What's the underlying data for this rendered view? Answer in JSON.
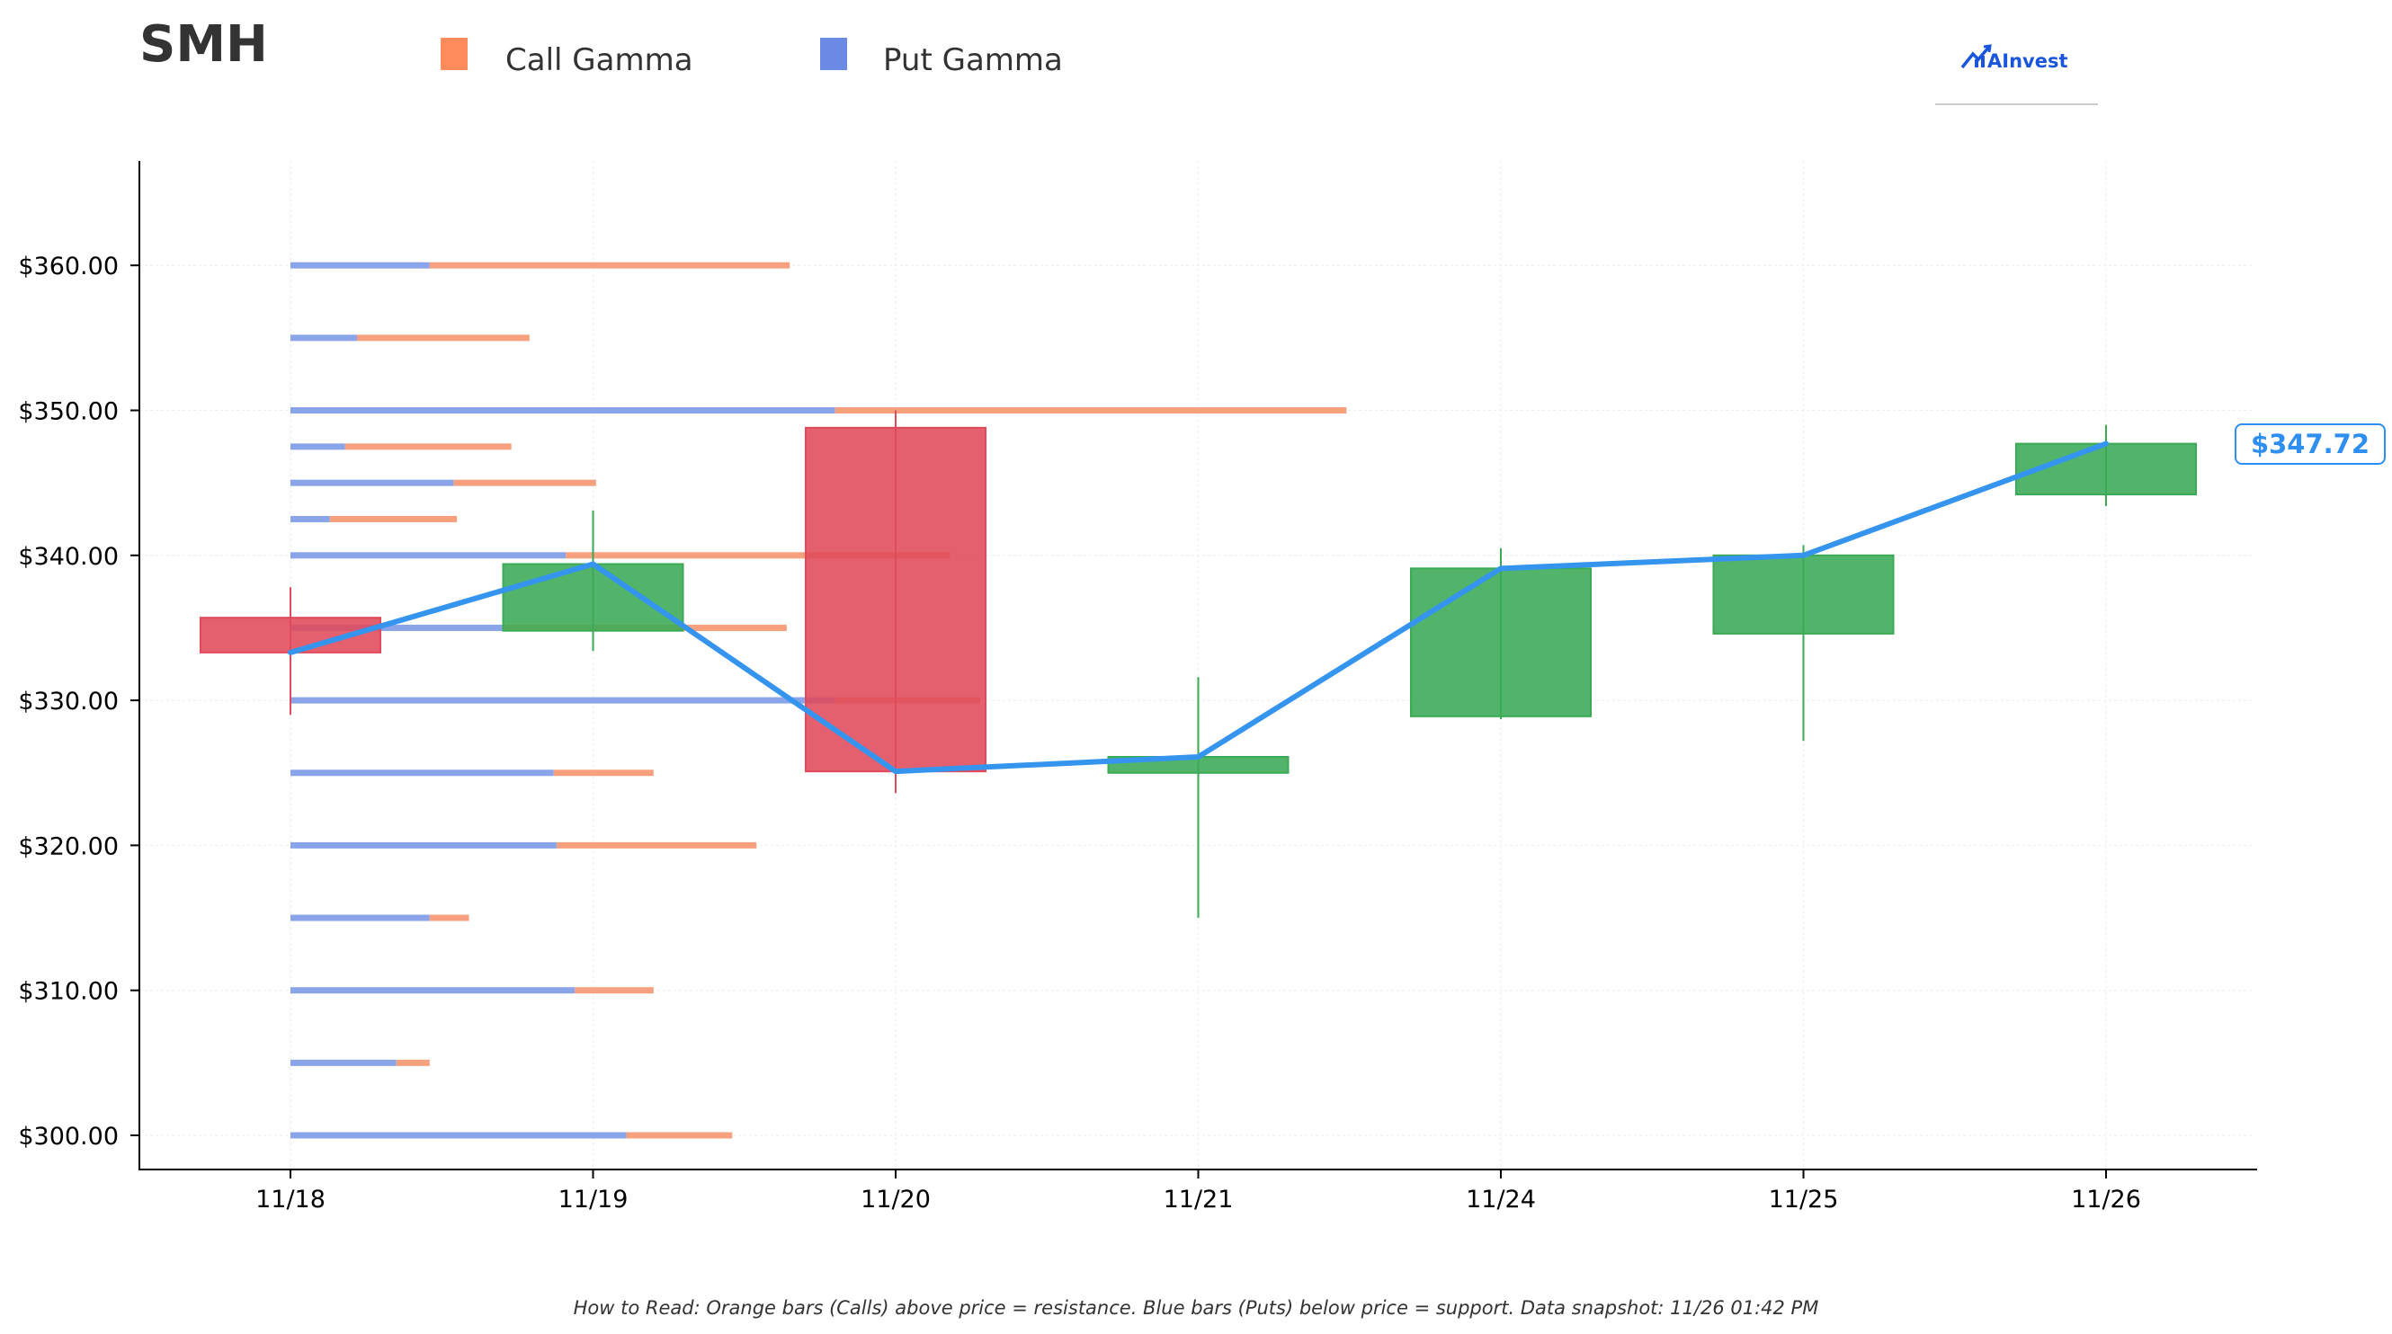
{
  "header": {
    "ticker": "SMH",
    "legend": [
      {
        "label": "Call Gamma",
        "color": "#ff8c5a"
      },
      {
        "label": "Put Gamma",
        "color": "#6b8ae6"
      }
    ],
    "logo_text": "AInvest"
  },
  "footer_note": "How to Read: Orange bars (Calls) above price = resistance. Blue bars (Puts) below price = support. Data snapshot: 11/26 01:42 PM",
  "colors": {
    "call": "#f7a07e",
    "put": "#8aa4ea",
    "up": "#3aaa55",
    "down": "#e04a5a",
    "price_line": "#3595ee",
    "axis": "#000000",
    "grid": "#eeeeee"
  },
  "chart_data": {
    "type": "candlestick",
    "xlabel": "",
    "ylabel": "",
    "ylim": [
      297.7,
      367.2
    ],
    "y_ticks": [
      300,
      310,
      320,
      330,
      340,
      350,
      360
    ],
    "y_tick_labels": [
      "$300.00",
      "$310.00",
      "$320.00",
      "$330.00",
      "$340.00",
      "$350.00",
      "$360.00"
    ],
    "grid": true,
    "categories": [
      "11/18",
      "11/19",
      "11/20",
      "11/21",
      "11/24",
      "11/25",
      "11/26"
    ],
    "candles": [
      {
        "date": "11/18",
        "open": 335.7,
        "high": 337.8,
        "low": 329.0,
        "close": 333.3
      },
      {
        "date": "11/19",
        "open": 334.8,
        "high": 343.1,
        "low": 333.4,
        "close": 339.4
      },
      {
        "date": "11/20",
        "open": 348.8,
        "high": 350.0,
        "low": 323.6,
        "close": 325.1
      },
      {
        "date": "11/21",
        "open": 325.0,
        "high": 331.6,
        "low": 315.0,
        "close": 326.1
      },
      {
        "date": "11/24",
        "open": 328.9,
        "high": 340.5,
        "low": 328.7,
        "close": 339.1
      },
      {
        "date": "11/25",
        "open": 334.6,
        "high": 340.7,
        "low": 327.2,
        "close": 340.0
      },
      {
        "date": "11/26",
        "open": 344.2,
        "high": 349.0,
        "low": 343.4,
        "close": 347.7
      }
    ],
    "price_line": [
      333.3,
      339.4,
      325.1,
      326.1,
      339.1,
      340.0,
      347.7
    ],
    "current_price_label": "$347.72",
    "gamma_bar_units": "relative length in day-widths from 11/18",
    "gamma_levels": [
      {
        "strike": 360,
        "put": 0.46,
        "call": 1.19
      },
      {
        "strike": 355,
        "put": 0.22,
        "call": 0.57
      },
      {
        "strike": 350,
        "put": 1.8,
        "call": 1.69
      },
      {
        "strike": 347.5,
        "put": 0.18,
        "call": 0.55
      },
      {
        "strike": 345,
        "put": 0.54,
        "call": 0.47
      },
      {
        "strike": 342.5,
        "put": 0.13,
        "call": 0.42
      },
      {
        "strike": 340,
        "put": 0.91,
        "call": 1.27
      },
      {
        "strike": 335,
        "put": 0.7,
        "call": 0.94
      },
      {
        "strike": 330,
        "put": 1.8,
        "call": 0.48
      },
      {
        "strike": 325,
        "put": 0.87,
        "call": 0.33
      },
      {
        "strike": 320,
        "put": 0.88,
        "call": 0.66
      },
      {
        "strike": 315,
        "put": 0.46,
        "call": 0.13
      },
      {
        "strike": 310,
        "put": 0.94,
        "call": 0.26
      },
      {
        "strike": 305,
        "put": 0.35,
        "call": 0.11
      },
      {
        "strike": 300,
        "put": 1.11,
        "call": 0.35
      }
    ]
  }
}
